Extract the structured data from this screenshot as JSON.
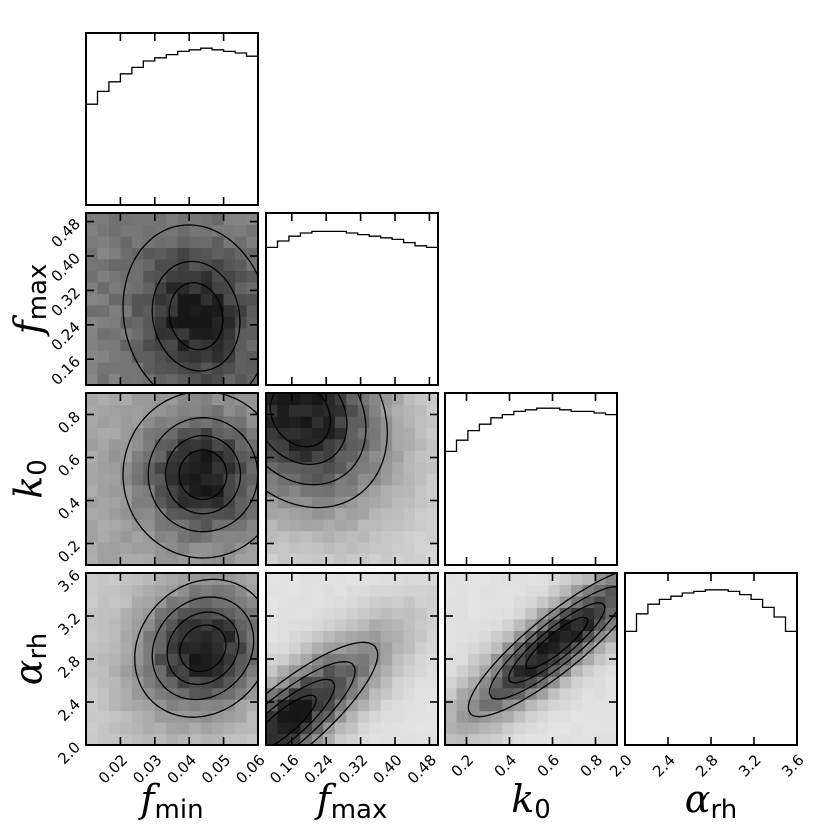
{
  "chart_data": {
    "type": "corner",
    "grid": false,
    "parameters": [
      {
        "key": "f_min",
        "symbol": "f",
        "subscript": "min",
        "range": [
          0.01,
          0.06
        ],
        "ticks": [
          0.02,
          0.03,
          0.04,
          0.05,
          0.06
        ],
        "tick_labels": [
          "0.02",
          "0.03",
          "0.04",
          "0.05",
          "0.06"
        ]
      },
      {
        "key": "f_max",
        "symbol": "f",
        "subscript": "max",
        "range": [
          0.1,
          0.5
        ],
        "ticks": [
          0.16,
          0.24,
          0.32,
          0.4,
          0.48
        ],
        "tick_labels": [
          "0.16",
          "0.24",
          "0.32",
          "0.40",
          "0.48"
        ]
      },
      {
        "key": "k_0",
        "symbol": "k",
        "subscript": "0",
        "range": [
          0.1,
          0.9
        ],
        "ticks": [
          0.2,
          0.4,
          0.6,
          0.8
        ],
        "tick_labels": [
          "0.2",
          "0.4",
          "0.6",
          "0.8"
        ]
      },
      {
        "key": "alpha_rh",
        "symbol": "α",
        "subscript": "rh",
        "range": [
          2.0,
          3.6
        ],
        "ticks": [
          2.0,
          2.4,
          2.8,
          3.2,
          3.6
        ],
        "tick_labels": [
          "2.0",
          "2.4",
          "2.8",
          "3.2",
          "3.6"
        ]
      }
    ],
    "diagonal_histograms": [
      {
        "param": "f_min",
        "heights": [
          0.63,
          0.71,
          0.77,
          0.82,
          0.86,
          0.9,
          0.92,
          0.94,
          0.96,
          0.97,
          0.98,
          0.97,
          0.96,
          0.95,
          0.93
        ]
      },
      {
        "param": "f_max",
        "heights": [
          0.86,
          0.9,
          0.93,
          0.95,
          0.96,
          0.96,
          0.96,
          0.95,
          0.94,
          0.93,
          0.92,
          0.91,
          0.89,
          0.87,
          0.86
        ]
      },
      {
        "param": "k_0",
        "heights": [
          0.71,
          0.78,
          0.84,
          0.88,
          0.92,
          0.94,
          0.96,
          0.97,
          0.98,
          0.98,
          0.97,
          0.96,
          0.96,
          0.95,
          0.94
        ]
      },
      {
        "param": "alpha_rh",
        "heights": [
          0.71,
          0.82,
          0.88,
          0.91,
          0.93,
          0.95,
          0.96,
          0.97,
          0.97,
          0.96,
          0.94,
          0.91,
          0.86,
          0.8,
          0.71
        ]
      }
    ],
    "joint_densities": [
      {
        "x": "f_min",
        "y": "f_max",
        "mode": [
          0.042,
          0.26
        ],
        "spread": [
          0.011,
          0.11
        ],
        "correlation": -0.1,
        "floor": 0.55
      },
      {
        "x": "f_min",
        "y": "k_0",
        "mode": [
          0.044,
          0.52
        ],
        "spread": [
          0.012,
          0.2
        ],
        "correlation": 0.0,
        "floor": 0.35
      },
      {
        "x": "f_max",
        "y": "k_0",
        "mode": [
          0.18,
          0.8
        ],
        "spread": [
          0.14,
          0.3
        ],
        "correlation": -0.2,
        "floor": 0.15
      },
      {
        "x": "f_min",
        "y": "alpha_rh",
        "mode": [
          0.044,
          2.9
        ],
        "spread": [
          0.013,
          0.42
        ],
        "correlation": 0.15,
        "floor": 0.2
      },
      {
        "x": "f_max",
        "y": "alpha_rh",
        "mode": [
          0.14,
          2.2
        ],
        "spread": [
          0.16,
          0.55
        ],
        "correlation": 0.85,
        "floor": 0.1
      },
      {
        "x": "k_0",
        "y": "alpha_rh",
        "mode": [
          0.62,
          2.95
        ],
        "spread": [
          0.3,
          0.5
        ],
        "correlation": 0.88,
        "floor": 0.1
      }
    ]
  }
}
